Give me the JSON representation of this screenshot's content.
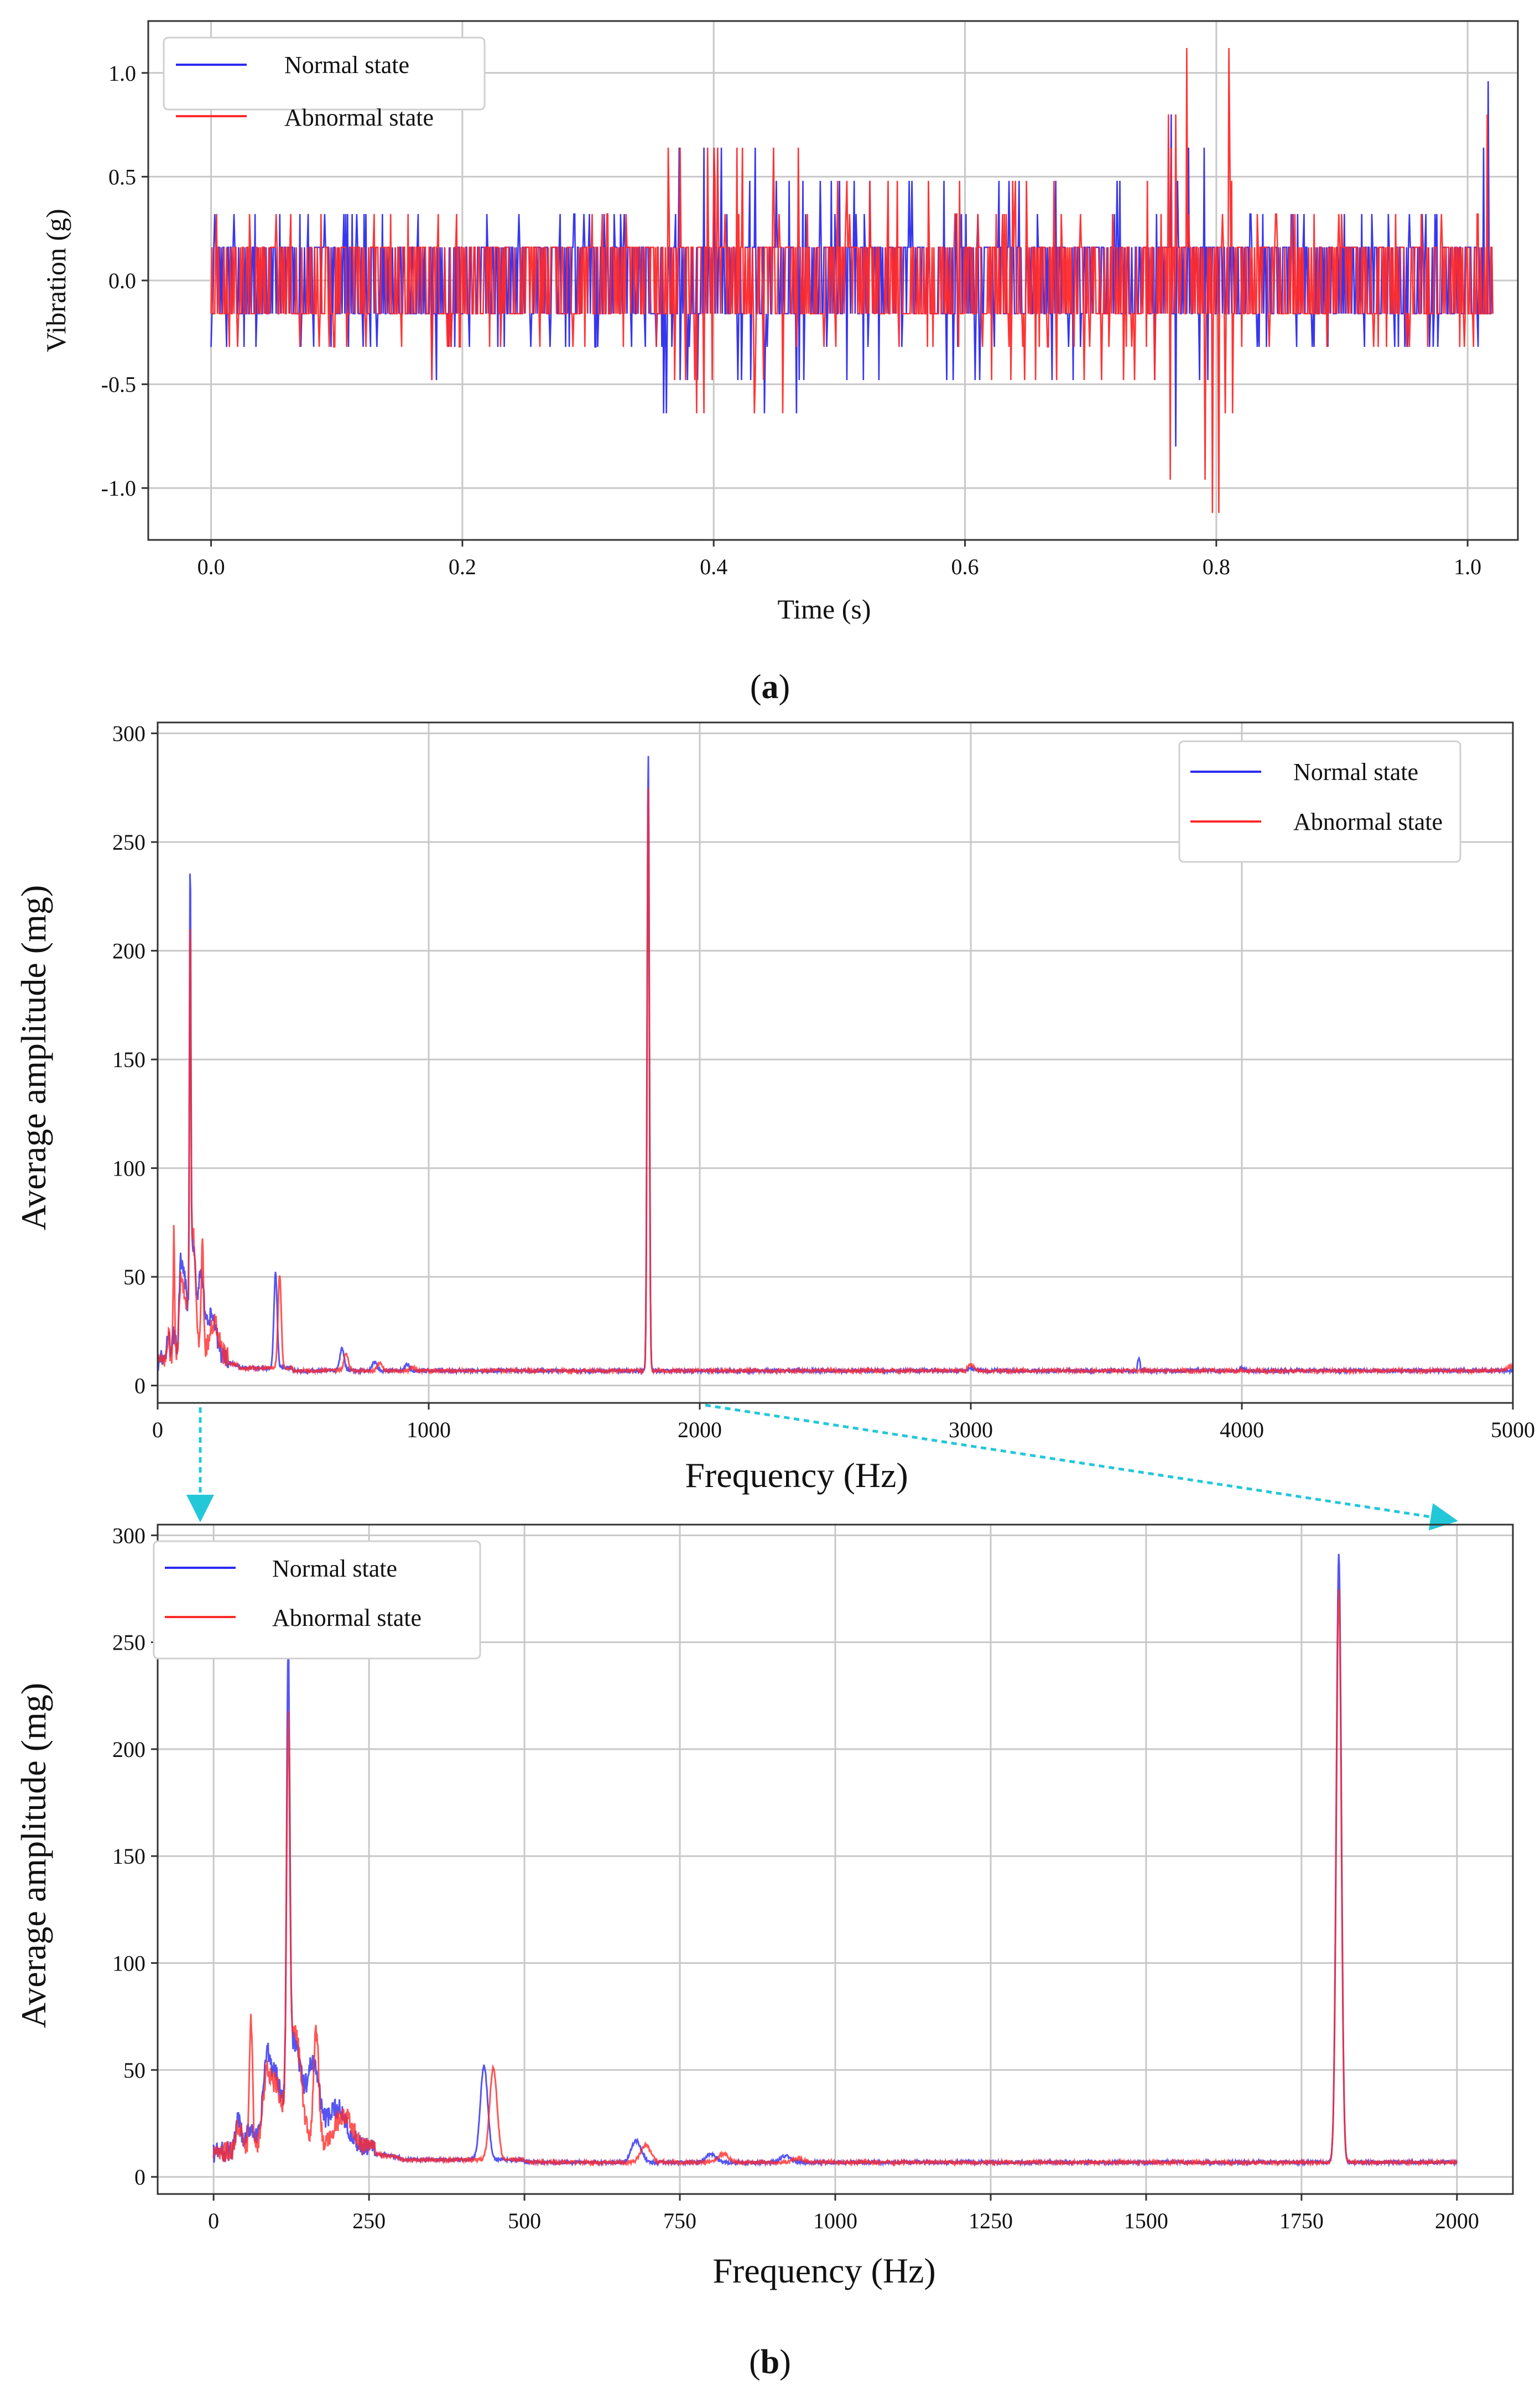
{
  "captions": {
    "a_open": "(",
    "a_letter": "a",
    "a_close": ")",
    "b_open": "(",
    "b_letter": "b",
    "b_close": ")"
  },
  "colors": {
    "normal": "#2b2bf0",
    "abnormal": "#ff2a2a",
    "grid": "#c8c8c8",
    "zoom_arrow": "#22c8d8"
  },
  "chart_data": [
    {
      "id": "time",
      "type": "line",
      "xlabel": "Time (s)",
      "ylabel": "Vibration (g)",
      "xlim": [
        -0.05,
        1.04
      ],
      "ylim": [
        -1.25,
        1.25
      ],
      "x_ticks": [
        0.0,
        0.2,
        0.4,
        0.6,
        0.8,
        1.0
      ],
      "x_tick_labels": [
        "0.0",
        "0.2",
        "0.4",
        "0.6",
        "0.8",
        "1.0"
      ],
      "y_ticks": [
        -1.0,
        -0.5,
        0.0,
        0.5,
        1.0
      ],
      "y_tick_labels": [
        "-1.0",
        "-0.5",
        "0.0",
        "0.5",
        "1.0"
      ],
      "grid": true,
      "legend": {
        "position": "top-left",
        "entries": [
          "Normal state",
          "Abnormal state"
        ]
      },
      "series": [
        {
          "name": "Normal state",
          "color": "#2b2bf0",
          "description": "quantized vibration signal, mostly +/-0.16 g with bursts",
          "bursts": [
            {
              "t_start": 0.0,
              "t_end": 0.175,
              "amplitude": 0.32
            },
            {
              "t_start": 0.175,
              "t_end": 0.185,
              "amplitude": 0.48
            },
            {
              "t_start": 0.185,
              "t_end": 0.36,
              "amplitude": 0.32
            },
            {
              "t_start": 0.36,
              "t_end": 0.48,
              "amplitude": 0.64
            },
            {
              "t_start": 0.48,
              "t_end": 0.755,
              "amplitude": 0.48
            },
            {
              "t_start": 0.755,
              "t_end": 0.815,
              "amplitude": 0.8
            },
            {
              "t_start": 0.815,
              "t_end": 1.01,
              "amplitude": 0.32
            },
            {
              "t_start": 1.01,
              "t_end": 1.02,
              "amplitude": 0.96
            }
          ]
        },
        {
          "name": "Abnormal state",
          "color": "#ff2a2a",
          "description": "quantized vibration signal with larger excursions near 0.78 s",
          "bursts": [
            {
              "t_start": 0.0,
              "t_end": 0.175,
              "amplitude": 0.32
            },
            {
              "t_start": 0.175,
              "t_end": 0.185,
              "amplitude": 0.48
            },
            {
              "t_start": 0.185,
              "t_end": 0.36,
              "amplitude": 0.32
            },
            {
              "t_start": 0.36,
              "t_end": 0.48,
              "amplitude": 0.64
            },
            {
              "t_start": 0.48,
              "t_end": 0.755,
              "amplitude": 0.48
            },
            {
              "t_start": 0.755,
              "t_end": 0.815,
              "amplitude": 1.12
            },
            {
              "t_start": 0.815,
              "t_end": 1.01,
              "amplitude": 0.32
            },
            {
              "t_start": 1.01,
              "t_end": 1.02,
              "amplitude": 0.8
            }
          ]
        }
      ]
    },
    {
      "id": "freq_full",
      "type": "line",
      "xlabel": "Frequency (Hz)",
      "ylabel": "Average amplitude (mg)",
      "xlim": [
        0,
        5000
      ],
      "ylim": [
        -8,
        305
      ],
      "x_ticks": [
        0,
        1000,
        2000,
        3000,
        4000,
        5000
      ],
      "x_tick_labels": [
        "0",
        "1000",
        "2000",
        "3000",
        "4000",
        "5000"
      ],
      "y_ticks": [
        0,
        50,
        100,
        150,
        200,
        250,
        300
      ],
      "y_tick_labels": [
        "0",
        "50",
        "100",
        "150",
        "200",
        "250",
        "300"
      ],
      "grid": true,
      "legend": {
        "position": "top-right",
        "entries": [
          "Normal state",
          "Abnormal state"
        ]
      },
      "series": [
        {
          "name": "Normal state",
          "color": "#2b2bf0",
          "baseline": 8,
          "peaks": [
            {
              "x": 40,
              "y": 22,
              "w": 4
            },
            {
              "x": 60,
              "y": 18,
              "w": 6
            },
            {
              "x": 85,
              "y": 45,
              "w": 6
            },
            {
              "x": 100,
              "y": 40,
              "w": 8
            },
            {
              "x": 120,
              "y": 210,
              "w": 2.5
            },
            {
              "x": 130,
              "y": 55,
              "w": 10
            },
            {
              "x": 160,
              "y": 45,
              "w": 10
            },
            {
              "x": 200,
              "y": 25,
              "w": 15
            },
            {
              "x": 435,
              "y": 52,
              "w": 6
            },
            {
              "x": 680,
              "y": 18,
              "w": 8
            },
            {
              "x": 800,
              "y": 12,
              "w": 8
            },
            {
              "x": 920,
              "y": 11,
              "w": 8
            },
            {
              "x": 1810,
              "y": 292,
              "w": 4
            },
            {
              "x": 3000,
              "y": 9,
              "w": 10
            },
            {
              "x": 3620,
              "y": 14,
              "w": 4
            },
            {
              "x": 4000,
              "y": 9,
              "w": 10
            }
          ]
        },
        {
          "name": "Abnormal state",
          "color": "#ff2a2a",
          "baseline": 8,
          "peaks": [
            {
              "x": 40,
              "y": 20,
              "w": 4
            },
            {
              "x": 60,
              "y": 70,
              "w": 2.5
            },
            {
              "x": 85,
              "y": 38,
              "w": 6
            },
            {
              "x": 100,
              "y": 35,
              "w": 8
            },
            {
              "x": 120,
              "y": 175,
              "w": 2.5
            },
            {
              "x": 130,
              "y": 62,
              "w": 10
            },
            {
              "x": 165,
              "y": 60,
              "w": 4
            },
            {
              "x": 210,
              "y": 22,
              "w": 15
            },
            {
              "x": 450,
              "y": 51,
              "w": 6
            },
            {
              "x": 695,
              "y": 16,
              "w": 8
            },
            {
              "x": 820,
              "y": 12,
              "w": 8
            },
            {
              "x": 940,
              "y": 10,
              "w": 8
            },
            {
              "x": 1810,
              "y": 276,
              "w": 4
            },
            {
              "x": 3000,
              "y": 11,
              "w": 10
            },
            {
              "x": 5000,
              "y": 10,
              "w": 20
            }
          ]
        }
      ]
    },
    {
      "id": "freq_zoom",
      "type": "line",
      "xlabel": "Frequency (Hz)",
      "ylabel": "Average amplitude (mg)",
      "xlim": [
        -90,
        2090
      ],
      "ylim": [
        -8,
        305
      ],
      "x_ticks": [
        0,
        250,
        500,
        750,
        1000,
        1250,
        1500,
        1750,
        2000
      ],
      "x_tick_labels": [
        "0",
        "250",
        "500",
        "750",
        "1000",
        "1250",
        "1500",
        "1750",
        "2000"
      ],
      "y_ticks": [
        0,
        50,
        100,
        150,
        200,
        250,
        300
      ],
      "y_tick_labels": [
        "0",
        "50",
        "100",
        "150",
        "200",
        "250",
        "300"
      ],
      "grid": true,
      "legend": {
        "position": "top-left",
        "entries": [
          "Normal state",
          "Abnormal state"
        ]
      },
      "series": [
        {
          "name": "Normal state",
          "color": "#2b2bf0",
          "baseline": 8,
          "peaks": [
            {
              "x": 40,
              "y": 22,
              "w": 4
            },
            {
              "x": 60,
              "y": 18,
              "w": 6
            },
            {
              "x": 85,
              "y": 45,
              "w": 6
            },
            {
              "x": 100,
              "y": 40,
              "w": 8
            },
            {
              "x": 120,
              "y": 210,
              "w": 2.5
            },
            {
              "x": 130,
              "y": 55,
              "w": 10
            },
            {
              "x": 160,
              "y": 45,
              "w": 10
            },
            {
              "x": 200,
              "y": 25,
              "w": 15
            },
            {
              "x": 435,
              "y": 52,
              "w": 6
            },
            {
              "x": 680,
              "y": 18,
              "w": 8
            },
            {
              "x": 800,
              "y": 12,
              "w": 8
            },
            {
              "x": 920,
              "y": 11,
              "w": 8
            },
            {
              "x": 1810,
              "y": 292,
              "w": 4
            }
          ]
        },
        {
          "name": "Abnormal state",
          "color": "#ff2a2a",
          "baseline": 8,
          "peaks": [
            {
              "x": 40,
              "y": 20,
              "w": 4
            },
            {
              "x": 60,
              "y": 70,
              "w": 2.5
            },
            {
              "x": 85,
              "y": 38,
              "w": 6
            },
            {
              "x": 100,
              "y": 35,
              "w": 8
            },
            {
              "x": 120,
              "y": 175,
              "w": 2.5
            },
            {
              "x": 130,
              "y": 62,
              "w": 10
            },
            {
              "x": 165,
              "y": 60,
              "w": 4
            },
            {
              "x": 210,
              "y": 22,
              "w": 15
            },
            {
              "x": 450,
              "y": 51,
              "w": 6
            },
            {
              "x": 695,
              "y": 16,
              "w": 8
            },
            {
              "x": 820,
              "y": 12,
              "w": 8
            },
            {
              "x": 940,
              "y": 10,
              "w": 8
            },
            {
              "x": 1810,
              "y": 276,
              "w": 4
            }
          ]
        }
      ]
    }
  ]
}
